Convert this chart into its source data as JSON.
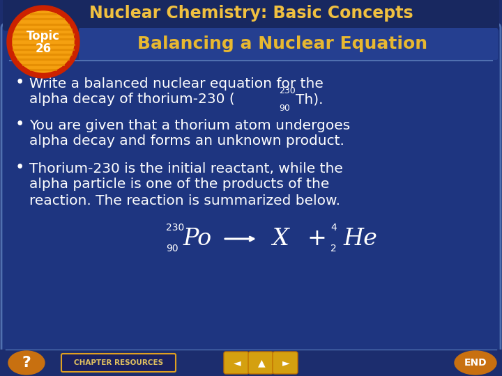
{
  "title": "Nuclear Chemistry: Basic Concepts",
  "subtitle": "Balancing a Nuclear Equation",
  "bg_outer": "#1c2d6e",
  "bg_inner": "#1e3580",
  "title_color": "#f0c040",
  "subtitle_color": "#e8b830",
  "text_color": "#ffffff",
  "topic_outer_color": "#cc2200",
  "topic_inner_color": "#f5a010",
  "topic_label_line1": "Topic",
  "topic_label_line2": "26",
  "bullet1_line1": "Write a balanced nuclear equation for the",
  "bullet1_line2": "alpha decay of thorium-230 (",
  "bullet1_elem": "Th).",
  "bullet2_line1": "You are given that a thorium atom undergoes",
  "bullet2_line2": "alpha decay and forms an unknown product.",
  "bullet3_line1": "Thorium-230 is the initial reactant, while the",
  "bullet3_line2": "alpha particle is one of the products of the",
  "bullet3_line3": "reaction. The reaction is summarized below.",
  "footer_text": "CHAPTER RESOURCES",
  "footer_bg": "#1c2d6e",
  "panel_edge": "#5070b0",
  "stripe_color": "#e08800"
}
